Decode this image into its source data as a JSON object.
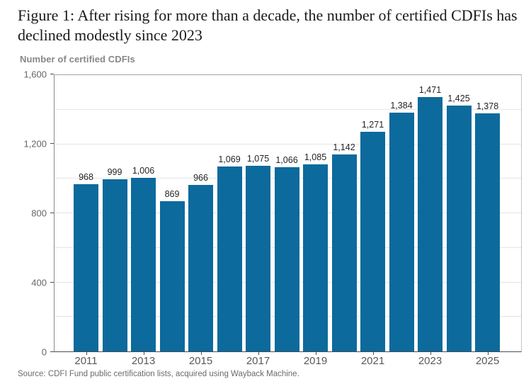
{
  "header": {
    "title": "Figure 1: After rising for more than a decade, the number of certified CDFIs has declined modestly since 2023",
    "subtitle": "Number of certified CDFIs"
  },
  "source": "Source: CDFI Fund public certification lists, acquired using Wayback Machine.",
  "colors": {
    "bar": "#0c6a9c",
    "gridline": "#e5e5e5",
    "axis_text": "#595959"
  },
  "chart_data": {
    "type": "bar",
    "title": "Figure 1: After rising for more than a decade, the number of certified CDFIs has declined modestly since 2023",
    "subtitle": "Number of certified CDFIs",
    "xlabel": "",
    "ylabel": "Number of certified CDFIs",
    "categories": [
      2011,
      2012,
      2013,
      2014,
      2015,
      2016,
      2017,
      2018,
      2019,
      2020,
      2021,
      2022,
      2023,
      2024,
      2025
    ],
    "values": [
      968,
      999,
      1006,
      869,
      966,
      1069,
      1075,
      1066,
      1085,
      1142,
      1271,
      1384,
      1471,
      1425,
      1378
    ],
    "x_tick_labels": [
      "2011",
      "2013",
      "2015",
      "2017",
      "2019",
      "2021",
      "2023",
      "2025"
    ],
    "y_ticks": [
      0,
      400,
      800,
      1200,
      1600
    ],
    "ylim": [
      0,
      1600
    ],
    "gridline_step": 200,
    "grid": true,
    "legend": "none",
    "data_labels": true
  }
}
